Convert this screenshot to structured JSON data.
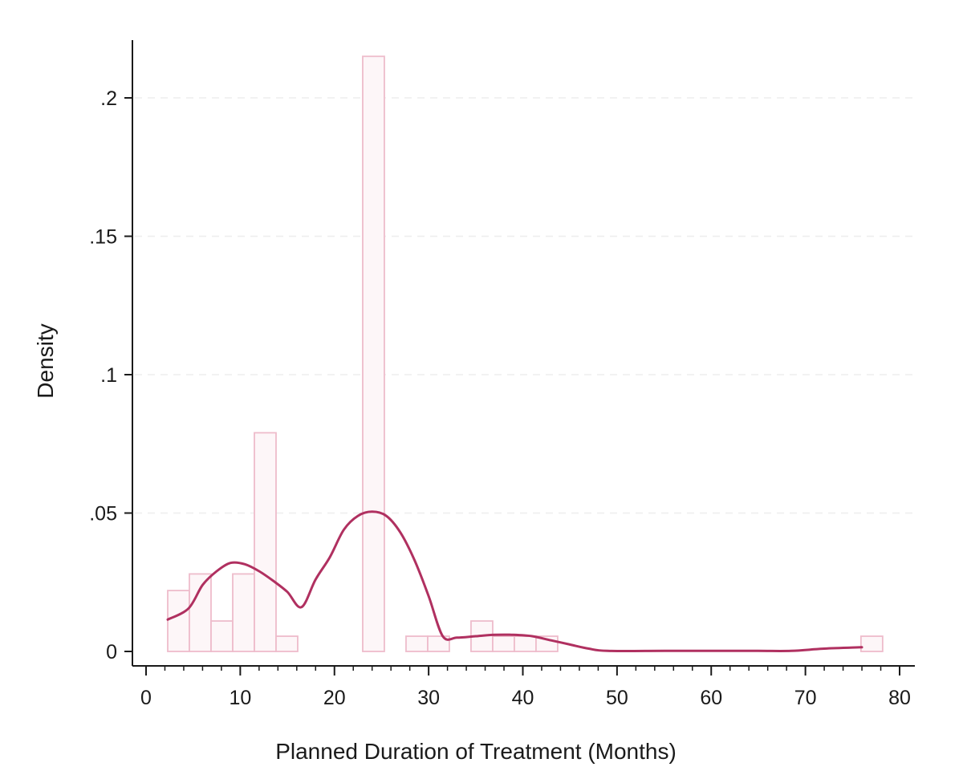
{
  "chart_data": {
    "type": "bar",
    "title": "",
    "xlabel": "Planned Duration of Treatment (Months)",
    "ylabel": "Density",
    "xlim": [
      0,
      80
    ],
    "ylim": [
      0,
      0.22
    ],
    "x_ticks": [
      {
        "value": 0,
        "label": "0"
      },
      {
        "value": 10,
        "label": "10"
      },
      {
        "value": 20,
        "label": "20"
      },
      {
        "value": 30,
        "label": "30"
      },
      {
        "value": 40,
        "label": "40"
      },
      {
        "value": 50,
        "label": "50"
      },
      {
        "value": 60,
        "label": "60"
      },
      {
        "value": 70,
        "label": "70"
      },
      {
        "value": 80,
        "label": "80"
      }
    ],
    "y_ticks": [
      {
        "value": 0,
        "label": "0"
      },
      {
        "value": 0.05,
        "label": ".05"
      },
      {
        "value": 0.1,
        "label": ".1"
      },
      {
        "value": 0.15,
        "label": ".15"
      },
      {
        "value": 0.2,
        "label": ".2"
      }
    ],
    "grid": "horizontal dashed",
    "legend": "none",
    "histogram": {
      "bin_width": 2.3,
      "bins": [
        {
          "x_start": 2.3,
          "density": 0.022
        },
        {
          "x_start": 4.6,
          "density": 0.028
        },
        {
          "x_start": 6.9,
          "density": 0.011
        },
        {
          "x_start": 9.2,
          "density": 0.028
        },
        {
          "x_start": 11.5,
          "density": 0.079
        },
        {
          "x_start": 13.8,
          "density": 0.0055
        },
        {
          "x_start": 23.0,
          "density": 0.215
        },
        {
          "x_start": 27.6,
          "density": 0.0055
        },
        {
          "x_start": 29.9,
          "density": 0.0055
        },
        {
          "x_start": 34.5,
          "density": 0.011
        },
        {
          "x_start": 36.8,
          "density": 0.0055
        },
        {
          "x_start": 39.1,
          "density": 0.0055
        },
        {
          "x_start": 41.4,
          "density": 0.0055
        },
        {
          "x_start": 75.9,
          "density": 0.0055
        }
      ],
      "fill_color": "#fdf6f8",
      "edge_color": "#eebccb"
    },
    "density_curve": {
      "color": "#b03060",
      "x": [
        2.3,
        4.5,
        6,
        7.5,
        9,
        10.5,
        12,
        13.5,
        15,
        16.5,
        18,
        19.5,
        21,
        22.5,
        24,
        25.5,
        27,
        28.5,
        30,
        31.5,
        33,
        35,
        37,
        39,
        41,
        43,
        45,
        47,
        49,
        55,
        60,
        65,
        68.5,
        72,
        76
      ],
      "y": [
        0.0115,
        0.0155,
        0.024,
        0.029,
        0.032,
        0.0315,
        0.029,
        0.0255,
        0.0215,
        0.016,
        0.026,
        0.034,
        0.044,
        0.049,
        0.0505,
        0.049,
        0.043,
        0.033,
        0.02,
        0.0055,
        0.005,
        0.0055,
        0.006,
        0.006,
        0.0055,
        0.004,
        0.0025,
        0.001,
        0.0002,
        0.0002,
        0.0002,
        0.0002,
        0.0002,
        0.001,
        0.0015
      ]
    }
  }
}
